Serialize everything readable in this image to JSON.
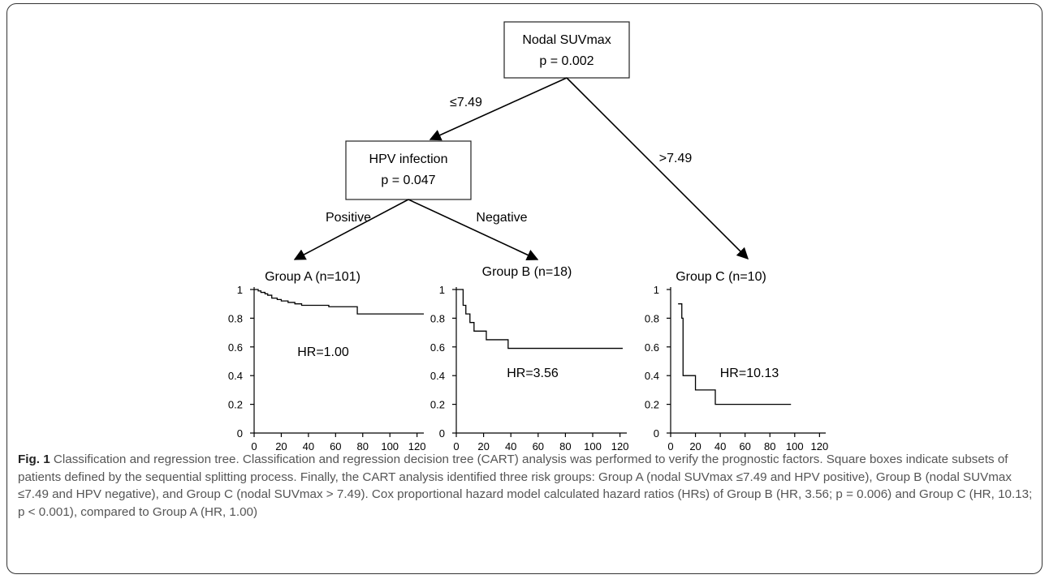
{
  "tree": {
    "root": {
      "title": "Nodal SUVmax",
      "p_text": "p = 0.002"
    },
    "hpv": {
      "title": "HPV infection",
      "p_text": "p = 0.047"
    },
    "edges": {
      "le": "≤7.49",
      "gt": ">7.49",
      "positive": "Positive",
      "negative": "Negative"
    }
  },
  "chart_data": [
    {
      "type": "line",
      "title": "Group A (n=101)",
      "annotation": "HR=1.00",
      "xlim": [
        0,
        125
      ],
      "ylim": [
        0,
        1
      ],
      "xticks": [
        0,
        20,
        40,
        60,
        80,
        100,
        120
      ],
      "yticks": [
        0,
        0.2,
        0.4,
        0.6,
        0.8,
        1
      ],
      "ytick_labels": [
        "0",
        "0.2",
        "0.4",
        "0.6",
        "0.8",
        "1"
      ],
      "step_points": [
        [
          0,
          1
        ],
        [
          3,
          0.99
        ],
        [
          5,
          0.98
        ],
        [
          8,
          0.97
        ],
        [
          10,
          0.96
        ],
        [
          13,
          0.94
        ],
        [
          17,
          0.93
        ],
        [
          20,
          0.92
        ],
        [
          25,
          0.91
        ],
        [
          30,
          0.9
        ],
        [
          35,
          0.89
        ],
        [
          55,
          0.88
        ],
        [
          76,
          0.83
        ],
        [
          125,
          0.83
        ]
      ]
    },
    {
      "type": "line",
      "title": "Group B (n=18)",
      "annotation": "HR=3.56",
      "xlim": [
        0,
        125
      ],
      "ylim": [
        0,
        1
      ],
      "xticks": [
        0,
        20,
        40,
        60,
        80,
        100,
        120
      ],
      "yticks": [
        0,
        0.2,
        0.4,
        0.6,
        0.8,
        1
      ],
      "ytick_labels": [
        "0",
        "0.2",
        "0.4",
        "0.6",
        "0.8",
        "1"
      ],
      "step_points": [
        [
          0,
          1
        ],
        [
          5,
          0.89
        ],
        [
          7,
          0.83
        ],
        [
          10,
          0.77
        ],
        [
          13,
          0.71
        ],
        [
          22,
          0.65
        ],
        [
          38,
          0.59
        ],
        [
          122,
          0.59
        ]
      ]
    },
    {
      "type": "line",
      "title": "Group C (n=10)",
      "annotation": "HR=10.13",
      "xlim": [
        0,
        125
      ],
      "ylim": [
        0,
        1
      ],
      "xticks": [
        0,
        20,
        40,
        60,
        80,
        100,
        120
      ],
      "yticks": [
        0,
        0.2,
        0.4,
        0.6,
        0.8,
        1
      ],
      "ytick_labels": [
        "0",
        "0.2",
        "0.4",
        "0.6",
        "0.8",
        "1"
      ],
      "step_points": [
        [
          6,
          0.9
        ],
        [
          9,
          0.8
        ],
        [
          10,
          0.4
        ],
        [
          20,
          0.3
        ],
        [
          36,
          0.2
        ],
        [
          97,
          0.2
        ]
      ]
    }
  ],
  "caption": {
    "label": "Fig. 1",
    "text": "Classification and regression tree. Classification and regression decision tree (CART) analysis was performed to verify the prognostic factors. Square boxes indicate subsets of patients defined by the sequential splitting process. Finally, the CART analysis identified three risk groups: Group A (nodal SUVmax ≤7.49 and HPV positive), Group B (nodal SUVmax ≤7.49 and HPV negative), and Group C (nodal SUVmax > 7.49). Cox proportional hazard model calculated hazard ratios (HRs) of Group B (HR, 3.56; p = 0.006) and Group C (HR, 10.13; p < 0.001), compared to Group A (HR, 1.00)"
  }
}
